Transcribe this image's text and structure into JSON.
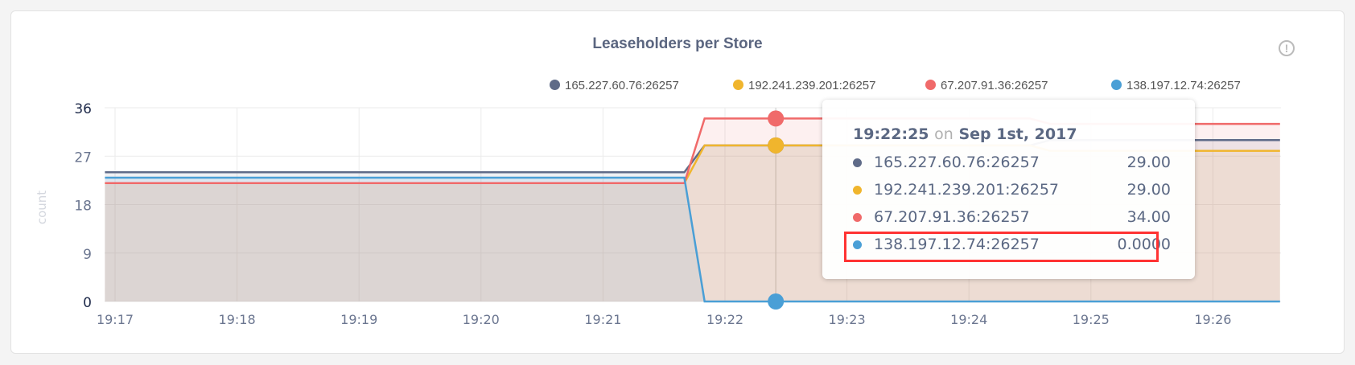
{
  "chart_data": {
    "type": "area",
    "title": "Leaseholders per Store",
    "ylabel": "count",
    "xlabel": "",
    "ylim": [
      0,
      36
    ],
    "yticks": [
      "0",
      "9",
      "18",
      "27",
      "36"
    ],
    "xticks": [
      "19:17",
      "19:18",
      "19:19",
      "19:20",
      "19:21",
      "19:22",
      "19:23",
      "19:24",
      "19:25",
      "19:26"
    ],
    "grid": true,
    "legend_position": "top",
    "series": [
      {
        "name": "165.227.60.76:26257",
        "color": "#5f6b88",
        "points": [
          [
            "19:16:55",
            24
          ],
          [
            "19:21:40",
            24
          ],
          [
            "19:21:50",
            29
          ],
          [
            "19:24:30",
            29
          ],
          [
            "19:24:40",
            30
          ],
          [
            "19:26:33",
            30
          ]
        ]
      },
      {
        "name": "192.241.239.201:26257",
        "color": "#f0b52d",
        "points": [
          [
            "19:16:55",
            22
          ],
          [
            "19:21:40",
            22
          ],
          [
            "19:21:50",
            29
          ],
          [
            "19:24:30",
            29
          ],
          [
            "19:24:40",
            28
          ],
          [
            "19:26:33",
            28
          ]
        ]
      },
      {
        "name": "67.207.91.36:26257",
        "color": "#f06a6a",
        "points": [
          [
            "19:16:55",
            22
          ],
          [
            "19:21:40",
            22
          ],
          [
            "19:21:50",
            34
          ],
          [
            "19:24:30",
            34
          ],
          [
            "19:24:40",
            33
          ],
          [
            "19:26:33",
            33
          ]
        ]
      },
      {
        "name": "138.197.12.74:26257",
        "color": "#4a9fd6",
        "points": [
          [
            "19:16:55",
            23
          ],
          [
            "19:21:40",
            23
          ],
          [
            "19:21:50",
            0
          ],
          [
            "19:26:33",
            0
          ]
        ]
      }
    ],
    "tooltip": {
      "time": "19:22:25",
      "on": "on",
      "date": "Sep 1st, 2017",
      "rows": [
        {
          "name": "165.227.60.76:26257",
          "value": "29.00"
        },
        {
          "name": "192.241.239.201:26257",
          "value": "29.00"
        },
        {
          "name": "67.207.91.36:26257",
          "value": "34.00"
        },
        {
          "name": "138.197.12.74:26257",
          "value": "0.0000",
          "highlighted": true
        }
      ]
    }
  },
  "info_icon": "info-circle-icon",
  "info_glyph": "!"
}
